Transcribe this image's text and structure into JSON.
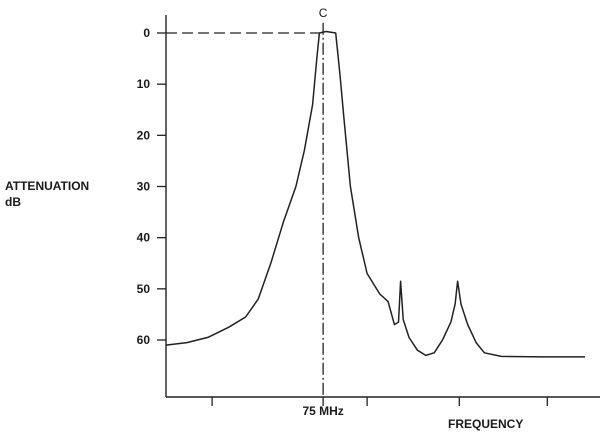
{
  "chart_data": {
    "type": "line",
    "ylabel_line1": "ATTENUATION",
    "ylabel_line2": "dB",
    "xlabel": "FREQUENCY",
    "center_label": "75 MHz",
    "peak_label": "C",
    "y_inverted": true,
    "ylim": [
      0,
      68
    ],
    "xlim": [
      0,
      100
    ],
    "y_ticks": [
      0,
      10,
      20,
      30,
      40,
      50,
      60
    ],
    "y_tick_labels": [
      "0",
      "10",
      "20",
      "30",
      "40",
      "50",
      "60"
    ],
    "x_ticks": [
      11,
      37.5,
      48,
      70,
      91
    ],
    "center_x": 37.5,
    "reference_level": 0,
    "series": [
      {
        "values": [
          [
            0,
            61.0
          ],
          [
            5,
            60.5
          ],
          [
            10,
            59.5
          ],
          [
            15,
            57.5
          ],
          [
            19,
            55.5
          ],
          [
            22,
            52.0
          ],
          [
            25,
            45.0
          ],
          [
            28,
            37.0
          ],
          [
            31,
            30.0
          ],
          [
            33,
            23.0
          ],
          [
            35,
            14.0
          ],
          [
            36,
            5.0
          ],
          [
            36.6,
            0.0
          ],
          [
            38.2,
            -0.3
          ],
          [
            40.5,
            0.0
          ],
          [
            41.5,
            8.0
          ],
          [
            42.5,
            17.0
          ],
          [
            44,
            30.0
          ],
          [
            46,
            40.0
          ],
          [
            48,
            47.0
          ],
          [
            51,
            51.0
          ],
          [
            53,
            52.5
          ],
          [
            54.5,
            57.0
          ],
          [
            55.5,
            56.5
          ],
          [
            56,
            48.5
          ],
          [
            56.6,
            56.0
          ],
          [
            58,
            59.5
          ],
          [
            60,
            62.0
          ],
          [
            62,
            63.0
          ],
          [
            64,
            62.5
          ],
          [
            66,
            60.0
          ],
          [
            68,
            56.5
          ],
          [
            69,
            53.0
          ],
          [
            69.6,
            48.5
          ],
          [
            70.4,
            53.0
          ],
          [
            72,
            57.0
          ],
          [
            74,
            60.5
          ],
          [
            76,
            62.5
          ],
          [
            80,
            63.2
          ],
          [
            90,
            63.3
          ],
          [
            100,
            63.3
          ]
        ]
      }
    ]
  }
}
